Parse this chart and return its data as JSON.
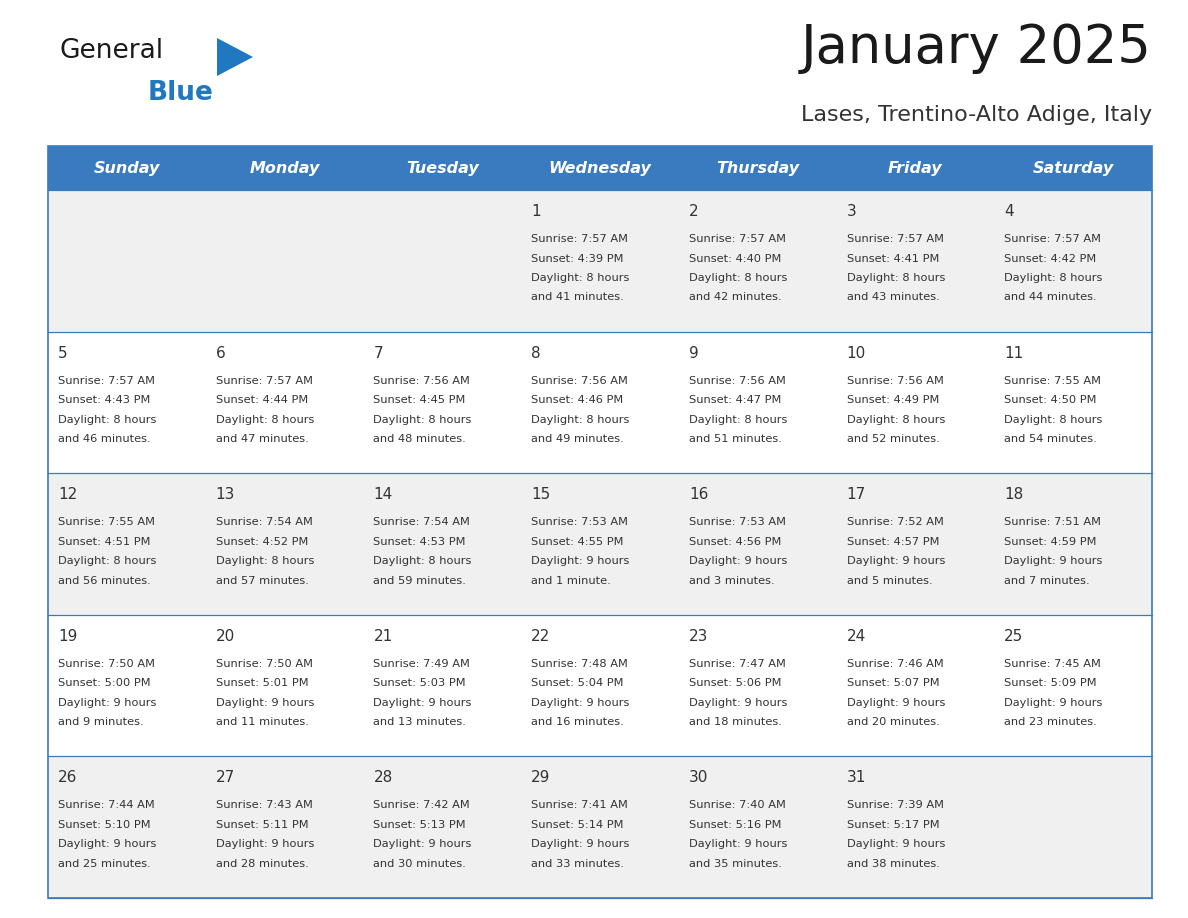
{
  "title": "January 2025",
  "subtitle": "Lases, Trentino-Alto Adige, Italy",
  "days_of_week": [
    "Sunday",
    "Monday",
    "Tuesday",
    "Wednesday",
    "Thursday",
    "Friday",
    "Saturday"
  ],
  "header_bg": "#3a7abf",
  "header_text": "#ffffff",
  "row_bg_odd": "#f0f0f0",
  "row_bg_even": "#ffffff",
  "cell_text_color": "#333333",
  "day_num_color": "#333333",
  "grid_color": "#3a7abf",
  "title_color": "#1a1a1a",
  "subtitle_color": "#333333",
  "logo_general_color": "#1a1a1a",
  "logo_blue_color": "#2079c0",
  "calendar_data": [
    {
      "day": 1,
      "col": 3,
      "row": 0,
      "sunrise": "7:57 AM",
      "sunset": "4:39 PM",
      "daylight_a": "8 hours",
      "daylight_b": "41 minutes."
    },
    {
      "day": 2,
      "col": 4,
      "row": 0,
      "sunrise": "7:57 AM",
      "sunset": "4:40 PM",
      "daylight_a": "8 hours",
      "daylight_b": "42 minutes."
    },
    {
      "day": 3,
      "col": 5,
      "row": 0,
      "sunrise": "7:57 AM",
      "sunset": "4:41 PM",
      "daylight_a": "8 hours",
      "daylight_b": "43 minutes."
    },
    {
      "day": 4,
      "col": 6,
      "row": 0,
      "sunrise": "7:57 AM",
      "sunset": "4:42 PM",
      "daylight_a": "8 hours",
      "daylight_b": "44 minutes."
    },
    {
      "day": 5,
      "col": 0,
      "row": 1,
      "sunrise": "7:57 AM",
      "sunset": "4:43 PM",
      "daylight_a": "8 hours",
      "daylight_b": "46 minutes."
    },
    {
      "day": 6,
      "col": 1,
      "row": 1,
      "sunrise": "7:57 AM",
      "sunset": "4:44 PM",
      "daylight_a": "8 hours",
      "daylight_b": "47 minutes."
    },
    {
      "day": 7,
      "col": 2,
      "row": 1,
      "sunrise": "7:56 AM",
      "sunset": "4:45 PM",
      "daylight_a": "8 hours",
      "daylight_b": "48 minutes."
    },
    {
      "day": 8,
      "col": 3,
      "row": 1,
      "sunrise": "7:56 AM",
      "sunset": "4:46 PM",
      "daylight_a": "8 hours",
      "daylight_b": "49 minutes."
    },
    {
      "day": 9,
      "col": 4,
      "row": 1,
      "sunrise": "7:56 AM",
      "sunset": "4:47 PM",
      "daylight_a": "8 hours",
      "daylight_b": "51 minutes."
    },
    {
      "day": 10,
      "col": 5,
      "row": 1,
      "sunrise": "7:56 AM",
      "sunset": "4:49 PM",
      "daylight_a": "8 hours",
      "daylight_b": "52 minutes."
    },
    {
      "day": 11,
      "col": 6,
      "row": 1,
      "sunrise": "7:55 AM",
      "sunset": "4:50 PM",
      "daylight_a": "8 hours",
      "daylight_b": "54 minutes."
    },
    {
      "day": 12,
      "col": 0,
      "row": 2,
      "sunrise": "7:55 AM",
      "sunset": "4:51 PM",
      "daylight_a": "8 hours",
      "daylight_b": "56 minutes."
    },
    {
      "day": 13,
      "col": 1,
      "row": 2,
      "sunrise": "7:54 AM",
      "sunset": "4:52 PM",
      "daylight_a": "8 hours",
      "daylight_b": "57 minutes."
    },
    {
      "day": 14,
      "col": 2,
      "row": 2,
      "sunrise": "7:54 AM",
      "sunset": "4:53 PM",
      "daylight_a": "8 hours",
      "daylight_b": "59 minutes."
    },
    {
      "day": 15,
      "col": 3,
      "row": 2,
      "sunrise": "7:53 AM",
      "sunset": "4:55 PM",
      "daylight_a": "9 hours",
      "daylight_b": "1 minute."
    },
    {
      "day": 16,
      "col": 4,
      "row": 2,
      "sunrise": "7:53 AM",
      "sunset": "4:56 PM",
      "daylight_a": "9 hours",
      "daylight_b": "3 minutes."
    },
    {
      "day": 17,
      "col": 5,
      "row": 2,
      "sunrise": "7:52 AM",
      "sunset": "4:57 PM",
      "daylight_a": "9 hours",
      "daylight_b": "5 minutes."
    },
    {
      "day": 18,
      "col": 6,
      "row": 2,
      "sunrise": "7:51 AM",
      "sunset": "4:59 PM",
      "daylight_a": "9 hours",
      "daylight_b": "7 minutes."
    },
    {
      "day": 19,
      "col": 0,
      "row": 3,
      "sunrise": "7:50 AM",
      "sunset": "5:00 PM",
      "daylight_a": "9 hours",
      "daylight_b": "9 minutes."
    },
    {
      "day": 20,
      "col": 1,
      "row": 3,
      "sunrise": "7:50 AM",
      "sunset": "5:01 PM",
      "daylight_a": "9 hours",
      "daylight_b": "11 minutes."
    },
    {
      "day": 21,
      "col": 2,
      "row": 3,
      "sunrise": "7:49 AM",
      "sunset": "5:03 PM",
      "daylight_a": "9 hours",
      "daylight_b": "13 minutes."
    },
    {
      "day": 22,
      "col": 3,
      "row": 3,
      "sunrise": "7:48 AM",
      "sunset": "5:04 PM",
      "daylight_a": "9 hours",
      "daylight_b": "16 minutes."
    },
    {
      "day": 23,
      "col": 4,
      "row": 3,
      "sunrise": "7:47 AM",
      "sunset": "5:06 PM",
      "daylight_a": "9 hours",
      "daylight_b": "18 minutes."
    },
    {
      "day": 24,
      "col": 5,
      "row": 3,
      "sunrise": "7:46 AM",
      "sunset": "5:07 PM",
      "daylight_a": "9 hours",
      "daylight_b": "20 minutes."
    },
    {
      "day": 25,
      "col": 6,
      "row": 3,
      "sunrise": "7:45 AM",
      "sunset": "5:09 PM",
      "daylight_a": "9 hours",
      "daylight_b": "23 minutes."
    },
    {
      "day": 26,
      "col": 0,
      "row": 4,
      "sunrise": "7:44 AM",
      "sunset": "5:10 PM",
      "daylight_a": "9 hours",
      "daylight_b": "25 minutes."
    },
    {
      "day": 27,
      "col": 1,
      "row": 4,
      "sunrise": "7:43 AM",
      "sunset": "5:11 PM",
      "daylight_a": "9 hours",
      "daylight_b": "28 minutes."
    },
    {
      "day": 28,
      "col": 2,
      "row": 4,
      "sunrise": "7:42 AM",
      "sunset": "5:13 PM",
      "daylight_a": "9 hours",
      "daylight_b": "30 minutes."
    },
    {
      "day": 29,
      "col": 3,
      "row": 4,
      "sunrise": "7:41 AM",
      "sunset": "5:14 PM",
      "daylight_a": "9 hours",
      "daylight_b": "33 minutes."
    },
    {
      "day": 30,
      "col": 4,
      "row": 4,
      "sunrise": "7:40 AM",
      "sunset": "5:16 PM",
      "daylight_a": "9 hours",
      "daylight_b": "35 minutes."
    },
    {
      "day": 31,
      "col": 5,
      "row": 4,
      "sunrise": "7:39 AM",
      "sunset": "5:17 PM",
      "daylight_a": "9 hours",
      "daylight_b": "38 minutes."
    }
  ]
}
